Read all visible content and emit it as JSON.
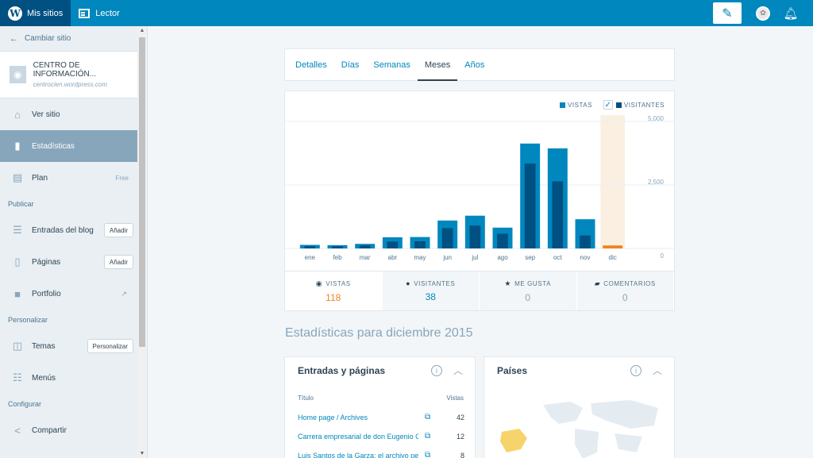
{
  "masterbar": {
    "my_sites": "Mis sitios",
    "reader": "Lector",
    "icons": [
      "wordpress-logo-icon",
      "reader-icon",
      "write-post-icon",
      "avatar-icon",
      "notifications-icon"
    ]
  },
  "sidebar": {
    "switch_site": "Cambiar sitio",
    "site_name": "CENTRO DE INFORMACIÓN...",
    "site_url": "centrocien.wordpress.com",
    "items": [
      {
        "label": "Ver sitio",
        "icon": "home-icon"
      },
      {
        "label": "Estadísticas",
        "icon": "stats-icon",
        "selected": true
      },
      {
        "label": "Plan",
        "icon": "clipboard-icon",
        "badge": "Free"
      }
    ],
    "section_publish": "Publicar",
    "publish_items": [
      {
        "label": "Entradas del blog",
        "icon": "posts-icon",
        "button": "Añadir"
      },
      {
        "label": "Páginas",
        "icon": "pages-icon",
        "button": "Añadir"
      },
      {
        "label": "Portfolio",
        "icon": "folder-icon"
      }
    ],
    "section_personalize": "Personalizar",
    "personalize_items": [
      {
        "label": "Temas",
        "icon": "themes-icon",
        "button": "Personalizar"
      },
      {
        "label": "Menús",
        "icon": "menus-icon"
      }
    ],
    "section_configure": "Configurar",
    "configure_items": [
      {
        "label": "Compartir",
        "icon": "share-icon"
      }
    ]
  },
  "tabs": [
    "Detalles",
    "Días",
    "Semanas",
    "Meses",
    "Años"
  ],
  "selected_tab": "Meses",
  "legend": {
    "views": "VISTAS",
    "visitors": "VISITANTES"
  },
  "colors": {
    "views": "#0087be",
    "visitors": "#005082",
    "highlight": "#fbefe2",
    "current_views": "#f0821e"
  },
  "chart_data": {
    "type": "bar",
    "categories": [
      "ene",
      "feb",
      "mar",
      "abr",
      "may",
      "jun",
      "jul",
      "ago",
      "sep",
      "oct",
      "nov",
      "dic"
    ],
    "series": [
      {
        "name": "VISTAS",
        "values": [
          140,
          130,
          180,
          440,
          450,
          1100,
          1290,
          820,
          4130,
          3940,
          1150,
          118
        ]
      },
      {
        "name": "VISITANTES",
        "values": [
          90,
          85,
          120,
          270,
          280,
          800,
          900,
          580,
          3340,
          2640,
          510,
          38
        ]
      }
    ],
    "y_ticks": [
      "5,000",
      "2,500",
      "0"
    ],
    "ylim": [
      0,
      5000
    ],
    "highlighted_category": "dic",
    "grid": true
  },
  "stats": [
    {
      "label": "VISTAS",
      "value": "118",
      "icon": "eye-icon"
    },
    {
      "label": "VISITANTES",
      "value": "38",
      "icon": "person-icon"
    },
    {
      "label": "ME GUSTA",
      "value": "0",
      "icon": "star-icon"
    },
    {
      "label": "COMENTARIOS",
      "value": "0",
      "icon": "comment-icon"
    }
  ],
  "period_title": "Estadísticas para diciembre 2015",
  "posts_module": {
    "title": "Entradas y páginas",
    "col_title": "Título",
    "col_views": "Vistas",
    "rows": [
      {
        "title": "Home page / Archives",
        "views": "42"
      },
      {
        "title": "Carrera empresarial de don Eugenio Garza",
        "views": "12"
      },
      {
        "title": "Luis Santos de la Garza: el archivo personal",
        "views": "8"
      }
    ]
  },
  "countries_module": {
    "title": "Países"
  }
}
